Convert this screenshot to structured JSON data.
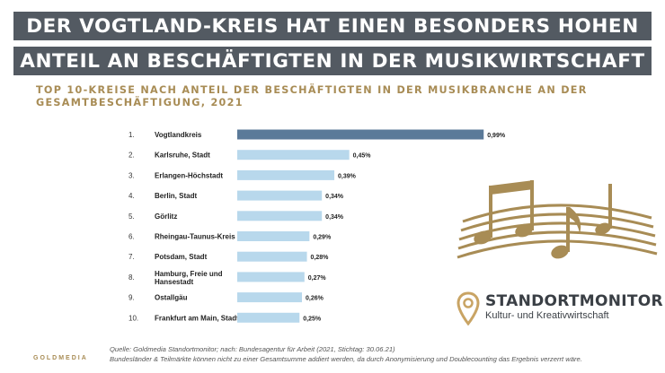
{
  "header": {
    "line1": "DER VOGTLAND-KREIS HAT EINEN BESONDERS HOHEN",
    "line2": "ANTEIL AN BESCHÄFTIGTEN IN DER MUSIKWIRTSCHAFT"
  },
  "chart_data": {
    "type": "bar",
    "orientation": "horizontal",
    "title": "TOP 10-KREISE NACH ANTEIL DER BESCHÄFTIGTEN IN DER MUSIKBRANCHE AN DER GESAMTBESCHÄFTIGUNG, 2021",
    "ranks": [
      "1.",
      "2.",
      "3.",
      "4.",
      "5.",
      "6.",
      "7.",
      "8.",
      "9.",
      "10."
    ],
    "categories": [
      "Vogtlandkreis",
      "Karlsruhe, Stadt",
      "Erlangen-Höchstadt",
      "Berlin, Stadt",
      "Görlitz",
      "Rheingau-Taunus-Kreis",
      "Potsdam, Stadt",
      "Hamburg, Freie und Hansestadt",
      "Ostallgäu",
      "Frankfurt am Main, Stadt"
    ],
    "values": [
      0.99,
      0.45,
      0.39,
      0.34,
      0.34,
      0.29,
      0.28,
      0.27,
      0.26,
      0.25
    ],
    "value_labels": [
      "0,99%",
      "0,45%",
      "0,39%",
      "0,34%",
      "0,34%",
      "0,29%",
      "0,28%",
      "0,27%",
      "0,26%",
      "0,25%"
    ],
    "colors": {
      "highlight": "#5b7a99",
      "bar": "#b8d8ec"
    },
    "grid": false,
    "legend": "none"
  },
  "logo": {
    "name": "STANDORTMONITOR",
    "tagline": "Kultur- und Kreativwirtschaft",
    "icon": "map-pin-icon"
  },
  "decoration": {
    "icon": "music-notes-icon",
    "color": "#a88c55"
  },
  "footer": {
    "source": "Quelle: Goldmedia Standortmonitor; nach: Bundesagentur für Arbeit (2021, Stichtag: 30.06.21)",
    "note": "Bundesländer & Teilmärkte können nicht zu einer Gesamtsumme addiert werden, da durch Anonymisierung und Doublecounting das Ergebnis verzerrt wäre.",
    "brand": "GOLDMEDIA"
  }
}
